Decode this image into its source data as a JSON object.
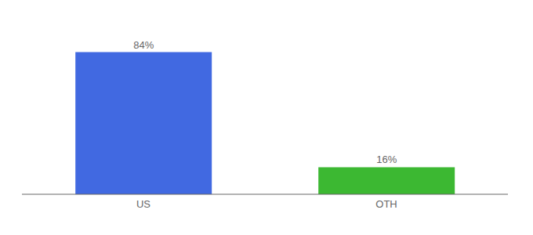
{
  "chart_data": {
    "type": "bar",
    "categories": [
      "US",
      "OTH"
    ],
    "values": [
      84,
      16
    ],
    "colors": [
      "#4169e1",
      "#3cb832"
    ],
    "value_labels": [
      "84%",
      "16%"
    ],
    "data_labels": true,
    "ylim": [
      0,
      100
    ],
    "tick_labels": "x",
    "grid": false
  }
}
